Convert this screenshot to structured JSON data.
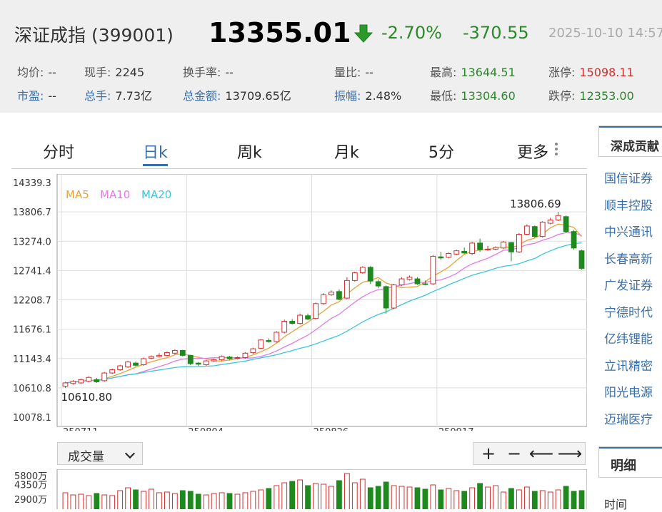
{
  "header": {
    "name": "深证成指 (399001)",
    "price": "13355.01",
    "change_pct": "-2.70%",
    "change": "-370.55",
    "time": "2025-10-10 14:57",
    "arrow_icon": "down-arrow-icon",
    "down_color": "#2a8a2a",
    "up_color": "#d03030"
  },
  "stats": {
    "avg_label": "均价:",
    "avg_value": "--",
    "cur_vol_label": "现手:",
    "cur_vol_value": "2245",
    "turnover_label": "换手率:",
    "turnover_value": "--",
    "vol_ratio_label": "量比:",
    "vol_ratio_value": "--",
    "high_label": "最高:",
    "high_value": "13644.51",
    "limit_up_label": "涨停:",
    "limit_up_value": "15098.11",
    "pe_label": "市盈:",
    "pe_value": "--",
    "total_vol_label": "总手:",
    "total_vol_value": "7.73亿",
    "amount_label": "总金额:",
    "amount_value": "13709.65亿",
    "amplitude_label": "振幅:",
    "amplitude_value": "2.48%",
    "low_label": "最低:",
    "low_value": "13304.60",
    "limit_down_label": "跌停:",
    "limit_down_value": "12353.00"
  },
  "tabs": [
    "分时",
    "日k",
    "周k",
    "月k",
    "5分",
    "更多"
  ],
  "active_tab": "日k",
  "chart_data": {
    "type": "candlestick",
    "y_ticks": [
      "14339.3",
      "13806.7",
      "13274.0",
      "12741.4",
      "12208.7",
      "11676.1",
      "11143.4",
      "10610.8",
      "10078.1"
    ],
    "ylim": [
      10078.1,
      14339.3
    ],
    "x_labels": [
      {
        "label": "250711",
        "index": 0
      },
      {
        "label": "250804",
        "index": 16
      },
      {
        "label": "250826",
        "index": 32
      },
      {
        "label": "250917",
        "index": 48
      }
    ],
    "max_label": "13806.69",
    "min_label": "10610.80",
    "legend": [
      {
        "name": "MA5",
        "color": "#e8a23a"
      },
      {
        "name": "MA10",
        "color": "#e27be0"
      },
      {
        "name": "MA20",
        "color": "#3cc4e0"
      }
    ],
    "up_color": "#d03030",
    "down_color": "#1e8a1e",
    "candles": [
      [
        10640,
        10700,
        10610.8,
        10720
      ],
      [
        10690,
        10730,
        10670,
        10750
      ],
      [
        10700,
        10760,
        10680,
        10780
      ],
      [
        10730,
        10800,
        10710,
        10820
      ],
      [
        10760,
        10720,
        10700,
        10790
      ],
      [
        10740,
        10880,
        10720,
        10900
      ],
      [
        10880,
        10940,
        10860,
        10960
      ],
      [
        10940,
        11010,
        10920,
        11030
      ],
      [
        10990,
        11080,
        10970,
        11100
      ],
      [
        11060,
        11020,
        11000,
        11090
      ],
      [
        11030,
        11140,
        11010,
        11160
      ],
      [
        11150,
        11180,
        11130,
        11200
      ],
      [
        11180,
        11200,
        11160,
        11240
      ],
      [
        11200,
        11250,
        11180,
        11270
      ],
      [
        11240,
        11290,
        11220,
        11310
      ],
      [
        11290,
        11200,
        11180,
        11300
      ],
      [
        11200,
        11050,
        11020,
        11210
      ],
      [
        11060,
        11040,
        11010,
        11080
      ],
      [
        11030,
        11100,
        11010,
        11120
      ],
      [
        11100,
        11120,
        11080,
        11140
      ],
      [
        11120,
        11180,
        11100,
        11200
      ],
      [
        11170,
        11140,
        11120,
        11190
      ],
      [
        11150,
        11160,
        11130,
        11180
      ],
      [
        11160,
        11240,
        11140,
        11260
      ],
      [
        11250,
        11320,
        11230,
        11340
      ],
      [
        11330,
        11480,
        11310,
        11500
      ],
      [
        11470,
        11450,
        11430,
        11510
      ],
      [
        11450,
        11620,
        11430,
        11640
      ],
      [
        11620,
        11820,
        11600,
        11850
      ],
      [
        11820,
        11780,
        11760,
        11860
      ],
      [
        11780,
        11930,
        11760,
        11960
      ],
      [
        11920,
        11860,
        11840,
        11960
      ],
      [
        11870,
        12140,
        11850,
        12160
      ],
      [
        12140,
        12300,
        12120,
        12330
      ],
      [
        12300,
        12350,
        12280,
        12380
      ],
      [
        12360,
        12220,
        12200,
        12400
      ],
      [
        12240,
        12560,
        12220,
        12620
      ],
      [
        12560,
        12700,
        12540,
        12720
      ],
      [
        12700,
        12800,
        12680,
        12820
      ],
      [
        12800,
        12550,
        12500,
        12820
      ],
      [
        12540,
        12460,
        12420,
        12580
      ],
      [
        12450,
        12060,
        11960,
        12470
      ],
      [
        12060,
        12480,
        12040,
        12500
      ],
      [
        12480,
        12590,
        12460,
        12620
      ],
      [
        12580,
        12620,
        12560,
        12650
      ],
      [
        12590,
        12500,
        12480,
        12620
      ],
      [
        12500,
        12490,
        12470,
        12560
      ],
      [
        12500,
        13000,
        12480,
        13020
      ],
      [
        12990,
        12970,
        12940,
        13080
      ],
      [
        12980,
        13050,
        12960,
        13070
      ],
      [
        13040,
        13100,
        13020,
        13120
      ],
      [
        13090,
        13060,
        13040,
        13160
      ],
      [
        13050,
        13240,
        13020,
        13260
      ],
      [
        13240,
        13120,
        13080,
        13320
      ],
      [
        13120,
        13130,
        13100,
        13190
      ],
      [
        13130,
        13160,
        13110,
        13180
      ],
      [
        13150,
        13260,
        13130,
        13280
      ],
      [
        13250,
        13080,
        12910,
        13260
      ],
      [
        13080,
        13400,
        13060,
        13420
      ],
      [
        13400,
        13550,
        13380,
        13580
      ],
      [
        13540,
        13360,
        13340,
        13560
      ],
      [
        13360,
        13620,
        13340,
        13640
      ],
      [
        13600,
        13660,
        13580,
        13700
      ],
      [
        13660,
        13740,
        13640,
        13806.69
      ],
      [
        13720,
        13450,
        13420,
        13740
      ],
      [
        13450,
        13150,
        13120,
        13480
      ],
      [
        13100,
        12780,
        12760,
        13120
      ]
    ],
    "volume": {
      "y_labels": [
        "5800万",
        "4350万",
        "2900万"
      ],
      "ylim": [
        0,
        5800
      ],
      "values": [
        2900,
        2600,
        2700,
        2500,
        2800,
        2600,
        2500,
        3200,
        3600,
        3300,
        3100,
        3400,
        2900,
        3000,
        2800,
        3200,
        3100,
        2700,
        2600,
        2800,
        2900,
        2800,
        2700,
        2900,
        3100,
        3300,
        3500,
        3900,
        4300,
        4500,
        4700,
        3900,
        4200,
        4100,
        3800,
        4600,
        5600,
        4300,
        4800,
        3600,
        3800,
        4400,
        3900,
        3800,
        3700,
        3600,
        3400,
        4000,
        3300,
        3500,
        3200,
        3100,
        3600,
        4200,
        3700,
        3900,
        3000,
        3500,
        3300,
        3700,
        3100,
        3200,
        3000,
        3300,
        3800,
        3100,
        3200
      ]
    }
  },
  "controls": {
    "volume_select": "成交量",
    "zoom_in": "+",
    "zoom_out": "−",
    "pan_left": "⟵",
    "pan_right": "⟶"
  },
  "sidebar": {
    "title": "深成贡献",
    "items": [
      "国信证券",
      "顺丰控股",
      "中兴通讯",
      "长春高新",
      "广发证券",
      "宁德时代",
      "亿纬锂能",
      "立讯精密",
      "阳光电源",
      "迈瑞医疗"
    ]
  },
  "detail": {
    "title": "明细",
    "sub": "时间"
  }
}
